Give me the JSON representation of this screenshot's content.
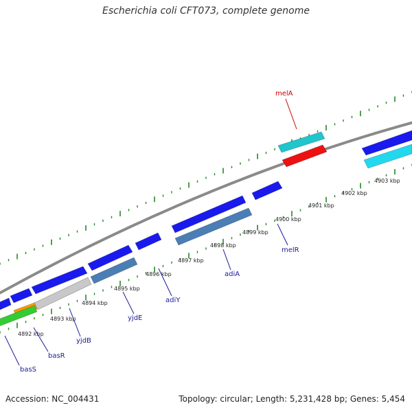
{
  "title": "Escherichia coli CFT073, complete genome",
  "footer": {
    "accession": "Accession: NC_004431",
    "stats": "Topology: circular; Length: 5,231,428 bp; Genes: 5,454"
  },
  "colors": {
    "backbone": "#8a8a8a",
    "gene_blue": "#1a1aee",
    "gene_steel": "#4a7eb5",
    "gene_cyan": "#22d8ee",
    "gene_teal": "#1fc6cc",
    "gene_red": "#ee1111",
    "gene_gray": "#c8c8c8",
    "gene_green": "#33cc33",
    "gene_orange": "#ff9900",
    "tick_green": "#228822",
    "label_blue": "#1a1a99",
    "label_red": "#cc0000"
  },
  "ticks": [
    {
      "label": "4892 kbp"
    },
    {
      "label": "4893 kbp"
    },
    {
      "label": "4894 kbp"
    },
    {
      "label": "4895 kbp"
    },
    {
      "label": "4896 kbp"
    },
    {
      "label": "4897 kbp"
    },
    {
      "label": "4898 kbp"
    },
    {
      "label": "4899 kbp"
    },
    {
      "label": "4900 kbp"
    },
    {
      "label": "4901 kbp"
    },
    {
      "label": "4902 kbp"
    },
    {
      "label": "4903 kbp"
    }
  ],
  "gene_labels": [
    {
      "name": "basS",
      "color": "label_blue"
    },
    {
      "name": "basR",
      "color": "label_blue"
    },
    {
      "name": "yjdB",
      "color": "label_blue"
    },
    {
      "name": "yjdE",
      "color": "label_blue"
    },
    {
      "name": "adiY",
      "color": "label_blue"
    },
    {
      "name": "adiA",
      "color": "label_blue"
    },
    {
      "name": "melR",
      "color": "label_blue"
    },
    {
      "name": "melA",
      "color": "label_red"
    }
  ]
}
